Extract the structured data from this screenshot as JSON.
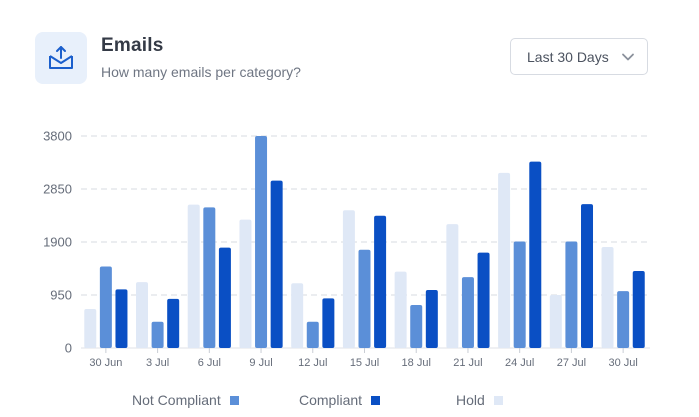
{
  "header": {
    "title": "Emails",
    "subtitle": "How many emails per category?",
    "icon": "mail-tray-icon"
  },
  "range_select": {
    "value": "Last 30 Days",
    "icon": "chevron-down-icon"
  },
  "colors": {
    "not_compliant": "#5b8fd8",
    "compliant": "#0a4fc4",
    "hold": "#dfe8f6",
    "icon_tile": "#e8f0fb",
    "icon_stroke": "#1b5fcc",
    "grid": "#dfe2e7"
  },
  "chart_data": {
    "type": "bar",
    "categories": [
      "30 Jun",
      "3 Jul",
      "6 Jul",
      "9 Jul",
      "12 Jul",
      "15 Jul",
      "18 Jul",
      "21 Jul",
      "24 Jul",
      "27 Jul",
      "30 Jul"
    ],
    "y_ticks": [
      "0",
      "950",
      "1900",
      "2850",
      "3800"
    ],
    "ylim": [
      0,
      3800
    ],
    "grid": true,
    "legend_position": "bottom",
    "series": [
      {
        "name": "Hold",
        "values": [
          700,
          1180,
          2570,
          2300,
          1160,
          2470,
          1370,
          2220,
          3140,
          950,
          1810
        ]
      },
      {
        "name": "Not Compliant",
        "values": [
          1460,
          470,
          2520,
          3800,
          470,
          1760,
          770,
          1270,
          1910,
          1910,
          1020
        ]
      },
      {
        "name": "Compliant",
        "values": [
          1050,
          880,
          1800,
          3000,
          890,
          2370,
          1040,
          1710,
          3340,
          2580,
          1380
        ]
      }
    ]
  },
  "legend": [
    {
      "label": "Not Compliant",
      "color": "#5b8fd8"
    },
    {
      "label": "Compliant",
      "color": "#0a4fc4"
    },
    {
      "label": "Hold",
      "color": "#dfe8f6"
    }
  ]
}
